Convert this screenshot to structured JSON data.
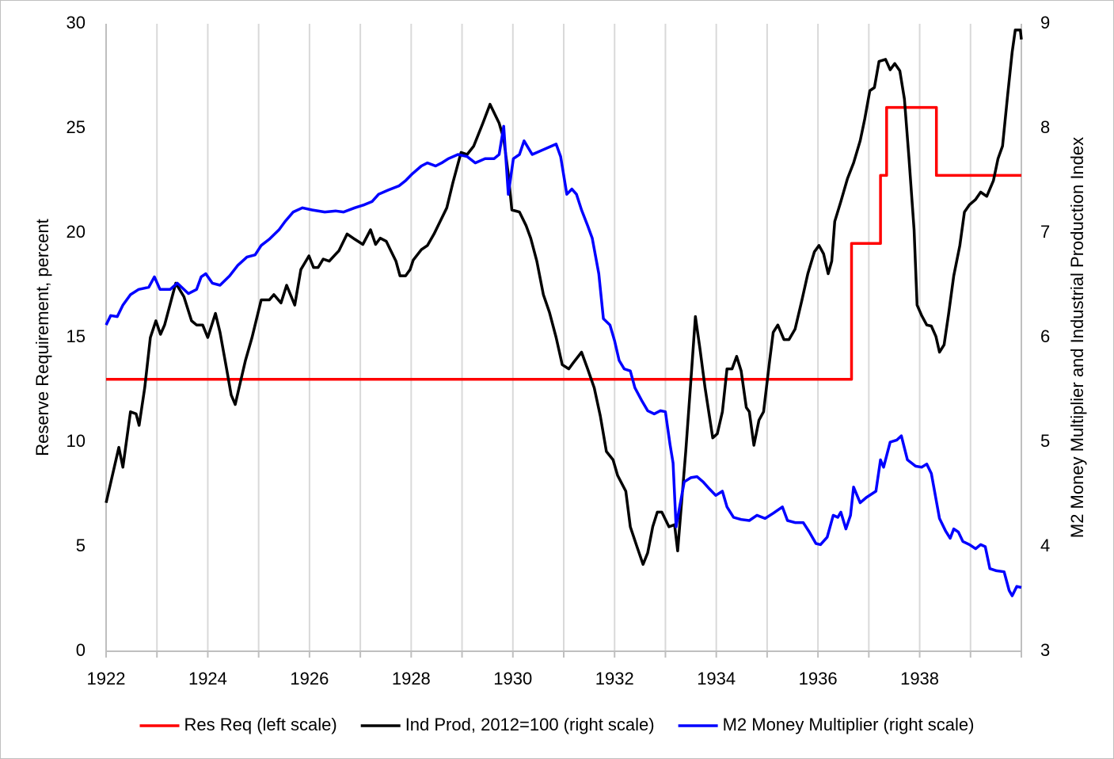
{
  "chart_data": {
    "type": "line",
    "xlim": [
      1922,
      1940
    ],
    "xticks": [
      1922,
      1924,
      1926,
      1928,
      1930,
      1932,
      1934,
      1936,
      1938
    ],
    "x_minor_grid": [
      1923,
      1925,
      1927,
      1929,
      1931,
      1933,
      1935,
      1937,
      1939
    ],
    "ylim": [
      0,
      30
    ],
    "yticks": [
      0,
      5,
      10,
      15,
      20,
      25,
      30
    ],
    "y2lim": [
      3,
      9
    ],
    "y2ticks": [
      3,
      4,
      5,
      6,
      7,
      8,
      9
    ],
    "ylabel": "Reserve Requirement, percent",
    "y2label": "M2 Money Multiplier and Industrial Production Index",
    "grid": "x",
    "legend": "bottom",
    "series": [
      {
        "name": "Res Req (left scale)",
        "color": "#ff0000",
        "axis": "y",
        "x": [
          1922,
          1936.66,
          1936.66,
          1937.23,
          1937.23,
          1937.35,
          1937.35,
          1938.33,
          1938.33,
          1940
        ],
        "values": [
          13,
          13,
          19.5,
          19.5,
          22.75,
          22.75,
          26,
          26,
          22.75,
          22.75
        ]
      },
      {
        "name": "Ind Prod, 2012=100 (right scale)",
        "color": "#000000",
        "axis": "y2",
        "x": [
          1922,
          1922.25,
          1922.33,
          1922.48,
          1922.59,
          1922.65,
          1922.76,
          1922.87,
          1922.98,
          1923.07,
          1923.15,
          1923.37,
          1923.53,
          1923.68,
          1923.78,
          1923.9,
          1924,
          1924.15,
          1924.24,
          1924.37,
          1924.46,
          1924.54,
          1924.63,
          1924.74,
          1924.87,
          1925.05,
          1925.21,
          1925.3,
          1925.44,
          1925.55,
          1925.71,
          1925.83,
          1925.99,
          1926.08,
          1926.17,
          1926.27,
          1926.39,
          1926.52,
          1926.58,
          1926.74,
          1926.89,
          1927.05,
          1927.2,
          1927.3,
          1927.39,
          1927.51,
          1927.6,
          1927.7,
          1927.78,
          1927.89,
          1927.98,
          1928.04,
          1928.2,
          1928.32,
          1928.45,
          1928.57,
          1928.7,
          1928.82,
          1928.98,
          1929.1,
          1929.23,
          1929.41,
          1929.55,
          1929.73,
          1929.82,
          1929.91,
          1929.98,
          1930.13,
          1930.26,
          1930.35,
          1930.47,
          1930.6,
          1930.72,
          1930.85,
          1930.97,
          1931.1,
          1931.19,
          1931.35,
          1931.47,
          1931.6,
          1931.72,
          1931.84,
          1931.97,
          1932.06,
          1932.22,
          1932.31,
          1932.44,
          1932.56,
          1932.65,
          1932.75,
          1932.84,
          1932.93,
          1933.07,
          1933.18,
          1933.24,
          1933.31,
          1933.4,
          1933.5,
          1933.59,
          1933.68,
          1933.78,
          1933.93,
          1934.02,
          1934.12,
          1934.21,
          1934.31,
          1934.4,
          1934.49,
          1934.59,
          1934.65,
          1934.74,
          1934.84,
          1934.93,
          1935.05,
          1935.12,
          1935.21,
          1935.33,
          1935.43,
          1935.55,
          1935.68,
          1935.8,
          1935.93,
          1936.02,
          1936.11,
          1936.2,
          1936.27,
          1936.33,
          1936.45,
          1936.58,
          1936.7,
          1936.83,
          1936.92,
          1937.02,
          1937.11,
          1937.2,
          1937.33,
          1937.42,
          1937.51,
          1937.61,
          1937.7,
          1937.79,
          1937.89,
          1937.95,
          1938.04,
          1938.14,
          1938.23,
          1938.32,
          1938.39,
          1938.48,
          1938.57,
          1938.67,
          1938.79,
          1938.88,
          1938.98,
          1939.1,
          1939.2,
          1939.32,
          1939.45,
          1939.54,
          1939.63,
          1939.73,
          1939.82,
          1939.88,
          1939.98,
          1940
        ],
        "values": [
          4.42,
          4.95,
          4.76,
          5.29,
          5.27,
          5.16,
          5.52,
          6.0,
          6.16,
          6.03,
          6.12,
          6.52,
          6.39,
          6.16,
          6.12,
          6.12,
          6.0,
          6.23,
          6.05,
          5.7,
          5.45,
          5.36,
          5.55,
          5.78,
          6.0,
          6.36,
          6.36,
          6.41,
          6.33,
          6.5,
          6.31,
          6.65,
          6.78,
          6.67,
          6.67,
          6.75,
          6.73,
          6.8,
          6.83,
          6.99,
          6.94,
          6.89,
          7.03,
          6.89,
          6.95,
          6.92,
          6.83,
          6.73,
          6.59,
          6.59,
          6.65,
          6.74,
          6.84,
          6.88,
          6.99,
          7.11,
          7.24,
          7.48,
          7.77,
          7.75,
          7.83,
          8.05,
          8.23,
          8.05,
          7.9,
          7.56,
          7.22,
          7.2,
          7.07,
          6.95,
          6.73,
          6.41,
          6.24,
          6.0,
          5.74,
          5.7,
          5.76,
          5.86,
          5.7,
          5.52,
          5.25,
          4.91,
          4.83,
          4.68,
          4.53,
          4.19,
          4.0,
          3.83,
          3.94,
          4.19,
          4.33,
          4.33,
          4.19,
          4.21,
          3.96,
          4.38,
          4.91,
          5.59,
          6.2,
          5.89,
          5.52,
          5.04,
          5.08,
          5.29,
          5.7,
          5.7,
          5.82,
          5.68,
          5.33,
          5.29,
          4.97,
          5.21,
          5.29,
          5.78,
          6.05,
          6.12,
          5.98,
          5.98,
          6.08,
          6.35,
          6.61,
          6.82,
          6.88,
          6.8,
          6.61,
          6.73,
          7.11,
          7.3,
          7.52,
          7.67,
          7.88,
          8.09,
          8.36,
          8.39,
          8.64,
          8.66,
          8.56,
          8.62,
          8.55,
          8.28,
          7.71,
          7.03,
          6.31,
          6.21,
          6.12,
          6.11,
          6.01,
          5.86,
          5.93,
          6.23,
          6.59,
          6.88,
          7.2,
          7.27,
          7.32,
          7.39,
          7.35,
          7.5,
          7.71,
          7.83,
          8.32,
          8.73,
          8.94,
          8.94,
          8.85
        ]
      },
      {
        "name": "M2 Money Multiplier (right scale)",
        "color": "#0000ff",
        "axis": "y2",
        "x": [
          1922,
          1922.09,
          1922.22,
          1922.33,
          1922.48,
          1922.64,
          1922.84,
          1922.95,
          1923.06,
          1923.26,
          1923.4,
          1923.62,
          1923.78,
          1923.87,
          1923.96,
          1924.09,
          1924.24,
          1924.43,
          1924.59,
          1924.77,
          1924.93,
          1925.05,
          1925.21,
          1925.4,
          1925.52,
          1925.68,
          1925.86,
          1926.05,
          1926.3,
          1926.52,
          1926.67,
          1926.89,
          1927.08,
          1927.23,
          1927.36,
          1927.55,
          1927.76,
          1927.89,
          1928.01,
          1928.2,
          1928.32,
          1928.48,
          1928.6,
          1928.73,
          1928.92,
          1929.1,
          1929.26,
          1929.45,
          1929.63,
          1929.73,
          1929.82,
          1929.91,
          1930.01,
          1930.13,
          1930.22,
          1930.38,
          1930.57,
          1930.76,
          1930.85,
          1930.94,
          1931.06,
          1931.16,
          1931.25,
          1931.35,
          1931.47,
          1931.56,
          1931.69,
          1931.78,
          1931.91,
          1932,
          1932.09,
          1932.19,
          1932.31,
          1932.4,
          1932.53,
          1932.65,
          1932.78,
          1932.9,
          1933,
          1933.09,
          1933.15,
          1933.21,
          1933.28,
          1933.37,
          1933.5,
          1933.62,
          1933.74,
          1933.87,
          1933.99,
          1934.12,
          1934.21,
          1934.34,
          1934.49,
          1934.65,
          1934.8,
          1934.96,
          1935.12,
          1935.3,
          1935.4,
          1935.55,
          1935.71,
          1935.83,
          1935.96,
          1936.05,
          1936.18,
          1936.3,
          1936.39,
          1936.45,
          1936.55,
          1936.64,
          1936.7,
          1936.83,
          1936.95,
          1937.14,
          1937.23,
          1937.29,
          1937.42,
          1937.55,
          1937.64,
          1937.76,
          1937.92,
          1938.04,
          1938.14,
          1938.23,
          1938.39,
          1938.51,
          1938.6,
          1938.67,
          1938.76,
          1938.85,
          1938.98,
          1939.1,
          1939.2,
          1939.29,
          1939.38,
          1939.51,
          1939.66,
          1939.76,
          1939.82,
          1939.91,
          1940
        ],
        "values": [
          6.12,
          6.21,
          6.2,
          6.31,
          6.41,
          6.46,
          6.48,
          6.58,
          6.46,
          6.46,
          6.52,
          6.42,
          6.46,
          6.58,
          6.61,
          6.52,
          6.5,
          6.59,
          6.69,
          6.77,
          6.79,
          6.88,
          6.94,
          7.03,
          7.11,
          7.2,
          7.24,
          7.22,
          7.2,
          7.21,
          7.2,
          7.24,
          7.27,
          7.3,
          7.37,
          7.41,
          7.45,
          7.5,
          7.56,
          7.64,
          7.67,
          7.64,
          7.67,
          7.71,
          7.75,
          7.73,
          7.67,
          7.71,
          7.71,
          7.75,
          8.02,
          7.37,
          7.71,
          7.75,
          7.88,
          7.75,
          7.79,
          7.83,
          7.85,
          7.73,
          7.37,
          7.42,
          7.37,
          7.22,
          7.07,
          6.95,
          6.61,
          6.18,
          6.12,
          5.97,
          5.78,
          5.7,
          5.68,
          5.52,
          5.4,
          5.3,
          5.27,
          5.3,
          5.29,
          4.98,
          4.8,
          4.19,
          4.38,
          4.62,
          4.66,
          4.67,
          4.62,
          4.55,
          4.49,
          4.53,
          4.38,
          4.28,
          4.26,
          4.25,
          4.3,
          4.27,
          4.32,
          4.38,
          4.25,
          4.23,
          4.23,
          4.14,
          4.03,
          4.02,
          4.09,
          4.3,
          4.28,
          4.33,
          4.17,
          4.3,
          4.57,
          4.42,
          4.47,
          4.53,
          4.83,
          4.76,
          5.0,
          5.02,
          5.06,
          4.83,
          4.77,
          4.76,
          4.79,
          4.7,
          4.27,
          4.15,
          4.08,
          4.17,
          4.14,
          4.05,
          4.02,
          3.98,
          4.02,
          4.0,
          3.79,
          3.77,
          3.76,
          3.58,
          3.53,
          3.62,
          3.61
        ]
      }
    ]
  }
}
